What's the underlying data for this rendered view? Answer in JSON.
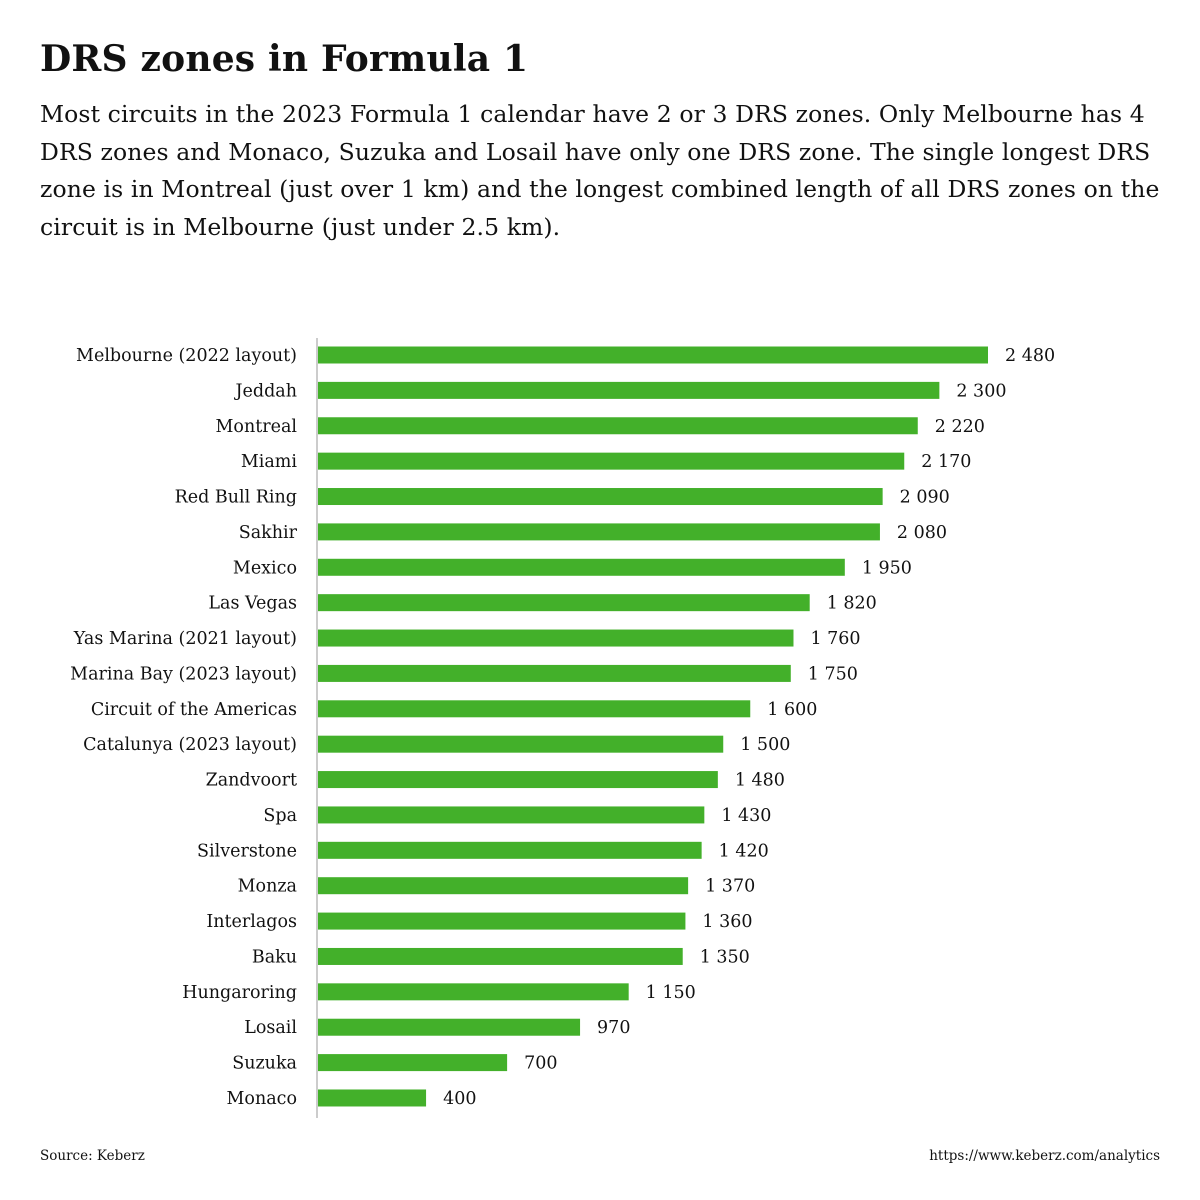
{
  "header": {
    "title": "DRS zones in Formula 1",
    "subtitle": "Most circuits in the 2023 Formula 1 calendar have 2 or 3 DRS zones. Only Melbourne has 4 DRS zones and Monaco, Suzuka and Losail have only one DRS zone. The single longest DRS zone is in Montreal (just over 1 km) and the longest combined length of all DRS zones on the circuit is in Melbourne (just under 2.5 km)."
  },
  "chart_data": {
    "type": "bar",
    "orientation": "horizontal",
    "categories": [
      "Melbourne (2022 layout)",
      "Jeddah",
      "Montreal",
      "Miami",
      "Red Bull Ring",
      "Sakhir",
      "Mexico",
      "Las Vegas",
      "Yas Marina (2021 layout)",
      "Marina Bay (2023 layout)",
      "Circuit of the Americas",
      "Catalunya (2023 layout)",
      "Zandvoort",
      "Spa",
      "Silverstone",
      "Monza",
      "Interlagos",
      "Baku",
      "Hungaroring",
      "Losail",
      "Suzuka",
      "Monaco"
    ],
    "values": [
      2480,
      2300,
      2220,
      2170,
      2090,
      2080,
      1950,
      1820,
      1760,
      1750,
      1600,
      1500,
      1480,
      1430,
      1420,
      1370,
      1360,
      1350,
      1150,
      970,
      700,
      400
    ],
    "value_labels": [
      "2 480",
      "2 300",
      "2 220",
      "2 170",
      "2 090",
      "2 080",
      "1 950",
      "1 820",
      "1 760",
      "1 750",
      "1 600",
      "1 500",
      "1 480",
      "1 430",
      "1 420",
      "1 370",
      "1 360",
      "1 350",
      "1 150",
      "970",
      "700",
      "400"
    ],
    "xlim": [
      0,
      2480
    ],
    "grid": false,
    "bar_color": "#43b02a",
    "axis_color": "#cccccc"
  },
  "footer": {
    "source": "Source: Keberz",
    "url": "https://www.keberz.com/analytics"
  }
}
